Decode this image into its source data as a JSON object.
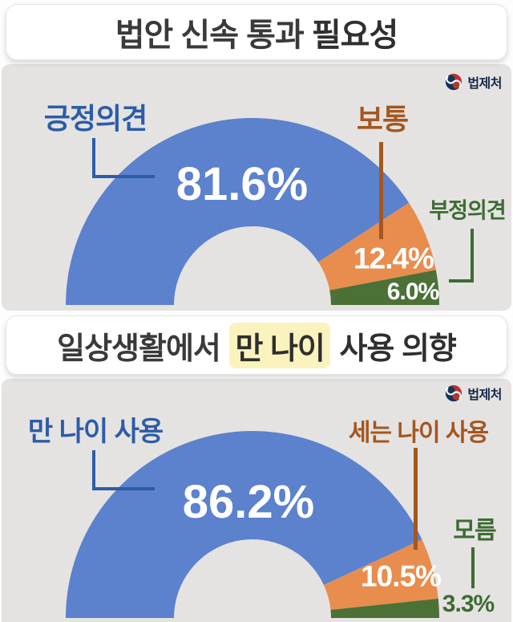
{
  "ui": {
    "titles": [
      {
        "prefix": "법안 신속 통과 ",
        "emphasis": "필요성"
      },
      {
        "prefix": "일상생활에서 ",
        "highlight": "만 나이",
        "suffix": " 사용 의향"
      }
    ],
    "logo_label": "법제처",
    "section_background": "#e4e3e2",
    "highlight_background": "#faf3bd"
  },
  "chart_data": [
    {
      "type": "pie",
      "variant": "half_donut",
      "title": "법안 신속 통과 필요성",
      "categories": [
        "긍정의견",
        "보통",
        "부정의견"
      ],
      "values": [
        81.6,
        12.4,
        6.0
      ],
      "value_labels": [
        "81.6%",
        "12.4%",
        "6.0%"
      ],
      "colors": [
        "#5c81cd",
        "#e88d4e",
        "#4c7137"
      ],
      "category_label_colors": [
        "#2d5ca8",
        "#a4571f",
        "#3e6b33"
      ],
      "value_label_colors": [
        "#ffffff",
        "#ffffff",
        "#ffffff"
      ],
      "legend_position": "callouts",
      "total": 100
    },
    {
      "type": "pie",
      "variant": "half_donut",
      "title": "일상생활에서 만 나이 사용 의향",
      "categories": [
        "만 나이 사용",
        "세는 나이 사용",
        "모름"
      ],
      "values": [
        86.2,
        10.5,
        3.3
      ],
      "value_labels": [
        "86.2%",
        "10.5%",
        "3.3%"
      ],
      "colors": [
        "#5c81cd",
        "#e88d4e",
        "#4c7137"
      ],
      "category_label_colors": [
        "#2d5ca8",
        "#a4571f",
        "#3e6b33"
      ],
      "value_label_colors": [
        "#ffffff",
        "#ffffff",
        "#3e6b33"
      ],
      "legend_position": "callouts",
      "total": 100
    }
  ]
}
